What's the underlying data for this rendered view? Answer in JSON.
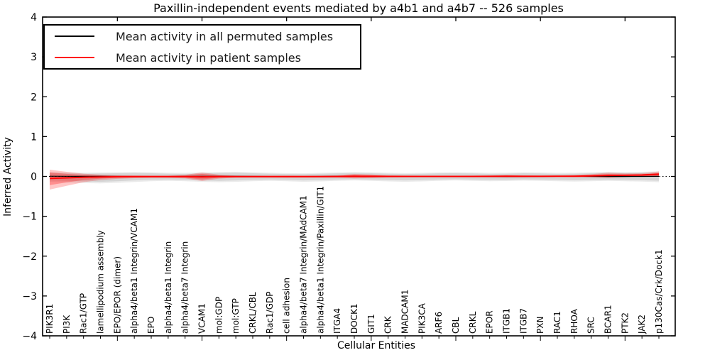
{
  "title": "Paxillin-independent events mediated by a4b1 and a4b7 -- 526 samples",
  "axes": {
    "ylabel": "Inferred Activity",
    "xlabel": "Cellular Entities",
    "ytick_labels": [
      "4",
      "3",
      "2",
      "1",
      "0",
      "−1",
      "−2",
      "−3",
      "−4"
    ],
    "ytick_values": [
      4,
      3,
      2,
      1,
      0,
      -1,
      -2,
      -3,
      -4
    ]
  },
  "legend": {
    "items": [
      {
        "label": "Mean activity in all permuted samples",
        "color": "#000000"
      },
      {
        "label": "Mean activity in patient samples",
        "color": "#ff0000"
      }
    ]
  },
  "colors": {
    "frame": "#000000",
    "zero_line": "#000000",
    "permuted_band_outer": "rgba(0,0,0,0.08)",
    "permuted_band_inner": "rgba(0,0,0,0.09)",
    "patient_band_outer": "rgba(255,0,0,0.22)",
    "patient_band_inner": "rgba(255,0,0,0.28)"
  },
  "chart_data": {
    "type": "line",
    "title": "Paxillin-independent events mediated by a4b1 and a4b7 -- 526 samples",
    "xlabel": "Cellular Entities",
    "ylabel": "Inferred Activity",
    "ylim": [
      -4,
      4
    ],
    "grid": false,
    "legend_position": "upper left",
    "zero_reference_line": "dotted",
    "categories": [
      "PIK3R1",
      "PI3K",
      "Rac1/GTP",
      "lamellipodium assembly",
      "EPO/EPOR (dimer)",
      "alpha4/beta1 Integrin/VCAM1",
      "EPO",
      "alpha4/beta1 Integrin",
      "alpha4/beta7 Integrin",
      "VCAM1",
      "mol:GDP",
      "mol:GTP",
      "CRKL/CBL",
      "Rac1/GDP",
      "cell adhesion",
      "alpha4/beta7 Integrin/MAdCAM1",
      "alpha4/beta1 Integrin/Paxillin/GIT1",
      "ITGA4",
      "DOCK1",
      "GIT1",
      "CRK",
      "MADCAM1",
      "PIK3CA",
      "ARF6",
      "CBL",
      "CRKL",
      "EPOR",
      "ITGB1",
      "ITGB7",
      "PXN",
      "RAC1",
      "RHOA",
      "SRC",
      "BCAR1",
      "PTK2",
      "JAK2",
      "p130Cas/Crk/Dock1"
    ],
    "series": [
      {
        "name": "Mean activity in all permuted samples",
        "color": "#000000",
        "width": 1.2,
        "values": [
          0.005,
          0.004,
          0.002,
          0.001,
          0.0,
          -0.001,
          -0.002,
          -0.001,
          0.0,
          0.001,
          0.002,
          0.001,
          0.0,
          -0.001,
          -0.002,
          -0.001,
          0.0,
          0.001,
          0.001,
          0.0,
          -0.001,
          -0.002,
          -0.001,
          0.0,
          0.001,
          0.001,
          0.0,
          -0.001,
          -0.001,
          0.0,
          0.001,
          0.001,
          0.0,
          -0.001,
          -0.001,
          0.0,
          0.002
        ]
      },
      {
        "name": "Mean activity in patient samples",
        "color": "#ff0000",
        "width": 2,
        "values": [
          -0.05,
          -0.035,
          -0.02,
          -0.012,
          -0.008,
          -0.005,
          -0.004,
          -0.004,
          -0.004,
          -0.01,
          -0.005,
          -0.004,
          -0.004,
          -0.004,
          -0.004,
          -0.004,
          -0.003,
          -0.002,
          0.004,
          0.002,
          0.0,
          0.0,
          0.0,
          0.0,
          0.0,
          0.0,
          0.002,
          0.003,
          0.002,
          0.002,
          0.003,
          0.006,
          0.012,
          0.025,
          0.028,
          0.035,
          0.055
        ]
      }
    ],
    "bands": [
      {
        "name": "permuted-samples-spread-outer",
        "color_key": "permuted_band_outer",
        "upper": [
          0.11,
          0.1,
          0.095,
          0.1,
          0.105,
          0.11,
          0.105,
          0.095,
          0.09,
          0.1,
          0.11,
          0.115,
          0.105,
          0.095,
          0.085,
          0.08,
          0.09,
          0.1,
          0.11,
          0.105,
          0.095,
          0.085,
          0.09,
          0.1,
          0.105,
          0.1,
          0.09,
          0.095,
          0.105,
          0.1,
          0.09,
          0.095,
          0.105,
          0.115,
          0.11,
          0.115,
          0.13
        ],
        "lower": [
          -0.135,
          -0.15,
          -0.165,
          -0.175,
          -0.16,
          -0.14,
          -0.12,
          -0.11,
          -0.12,
          -0.135,
          -0.145,
          -0.135,
          -0.12,
          -0.11,
          -0.12,
          -0.135,
          -0.125,
          -0.11,
          -0.1,
          -0.11,
          -0.125,
          -0.135,
          -0.125,
          -0.11,
          -0.1,
          -0.11,
          -0.12,
          -0.115,
          -0.105,
          -0.11,
          -0.12,
          -0.13,
          -0.12,
          -0.11,
          -0.12,
          -0.13,
          -0.145
        ]
      },
      {
        "name": "permuted-samples-spread-inner",
        "color_key": "permuted_band_inner",
        "upper": [
          0.08,
          0.075,
          0.07,
          0.075,
          0.08,
          0.085,
          0.08,
          0.07,
          0.065,
          0.075,
          0.085,
          0.09,
          0.08,
          0.07,
          0.06,
          0.058,
          0.068,
          0.078,
          0.085,
          0.08,
          0.07,
          0.06,
          0.068,
          0.078,
          0.08,
          0.075,
          0.065,
          0.07,
          0.08,
          0.075,
          0.065,
          0.07,
          0.08,
          0.09,
          0.085,
          0.09,
          0.1
        ],
        "lower": [
          -0.1,
          -0.11,
          -0.125,
          -0.135,
          -0.12,
          -0.1,
          -0.085,
          -0.078,
          -0.088,
          -0.1,
          -0.11,
          -0.1,
          -0.088,
          -0.078,
          -0.088,
          -0.1,
          -0.09,
          -0.078,
          -0.072,
          -0.08,
          -0.09,
          -0.1,
          -0.09,
          -0.078,
          -0.072,
          -0.08,
          -0.088,
          -0.084,
          -0.076,
          -0.08,
          -0.088,
          -0.096,
          -0.088,
          -0.08,
          -0.088,
          -0.096,
          -0.108
        ]
      },
      {
        "name": "patient-samples-spread-outer",
        "color_key": "patient_band_outer",
        "upper": [
          0.17,
          0.115,
          0.07,
          0.045,
          0.032,
          0.026,
          0.022,
          0.024,
          0.04,
          0.1,
          0.045,
          0.022,
          0.02,
          0.02,
          0.022,
          0.02,
          0.02,
          0.028,
          0.062,
          0.05,
          0.028,
          0.02,
          0.018,
          0.018,
          0.018,
          0.02,
          0.024,
          0.035,
          0.028,
          0.022,
          0.024,
          0.035,
          0.055,
          0.092,
          0.075,
          0.08,
          0.125
        ],
        "lower": [
          -0.33,
          -0.235,
          -0.145,
          -0.09,
          -0.06,
          -0.045,
          -0.035,
          -0.035,
          -0.05,
          -0.115,
          -0.055,
          -0.032,
          -0.028,
          -0.028,
          -0.03,
          -0.028,
          -0.026,
          -0.03,
          -0.05,
          -0.04,
          -0.026,
          -0.02,
          -0.018,
          -0.018,
          -0.018,
          -0.018,
          -0.02,
          -0.025,
          -0.02,
          -0.016,
          -0.014,
          -0.018,
          -0.025,
          -0.035,
          -0.018,
          -0.01,
          0.0
        ]
      },
      {
        "name": "patient-samples-spread-inner",
        "color_key": "patient_band_inner",
        "upper": [
          0.1,
          0.065,
          0.04,
          0.026,
          0.018,
          0.015,
          0.013,
          0.014,
          0.025,
          0.065,
          0.027,
          0.013,
          0.012,
          0.012,
          0.013,
          0.012,
          0.012,
          0.017,
          0.04,
          0.03,
          0.017,
          0.012,
          0.011,
          0.011,
          0.011,
          0.012,
          0.014,
          0.021,
          0.017,
          0.013,
          0.014,
          0.021,
          0.035,
          0.06,
          0.05,
          0.055,
          0.085
        ],
        "lower": [
          -0.22,
          -0.15,
          -0.09,
          -0.055,
          -0.036,
          -0.027,
          -0.021,
          -0.021,
          -0.032,
          -0.075,
          -0.034,
          -0.019,
          -0.017,
          -0.017,
          -0.018,
          -0.017,
          -0.016,
          -0.018,
          -0.032,
          -0.026,
          -0.016,
          -0.012,
          -0.011,
          -0.011,
          -0.011,
          -0.011,
          -0.012,
          -0.015,
          -0.012,
          -0.01,
          -0.008,
          -0.011,
          -0.015,
          -0.02,
          -0.008,
          0.0,
          0.01
        ]
      }
    ]
  }
}
